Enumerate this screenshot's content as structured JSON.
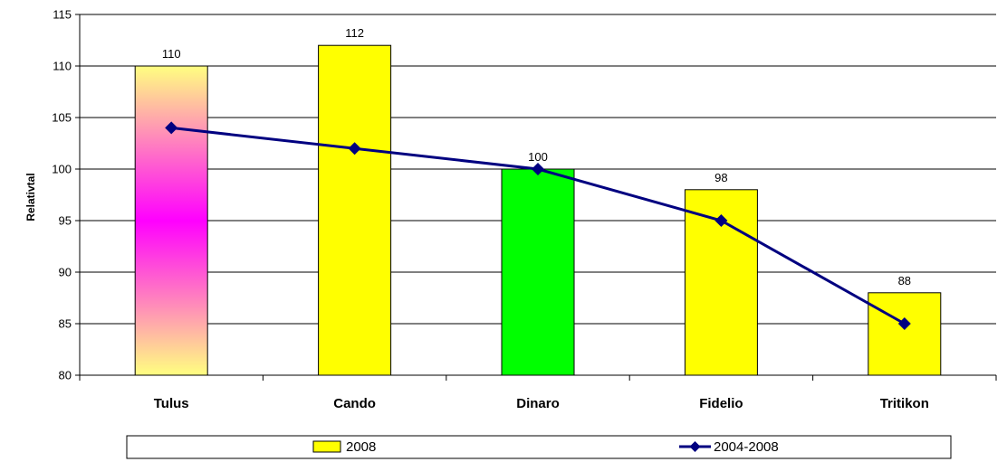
{
  "chart_data": {
    "type": "bar",
    "categories": [
      "Tulus",
      "Cando",
      "Dinaro",
      "Fidelio",
      "Tritikon"
    ],
    "series": [
      {
        "name": "2008",
        "kind": "bar",
        "values": [
          110,
          112,
          100,
          98,
          88
        ],
        "colors": [
          "gradient-pink-magenta",
          "#ffff00",
          "#00ff00",
          "#ffff00",
          "#ffff00"
        ]
      },
      {
        "name": "2004-2008",
        "kind": "line",
        "marker": "diamond",
        "color": "#000080",
        "values": [
          104,
          102,
          100,
          95,
          85
        ]
      }
    ],
    "data_labels": [
      "110",
      "112",
      "100",
      "98",
      "88"
    ],
    "ylabel": "Relativtal",
    "xlabel": "",
    "title": "",
    "ylim": [
      80,
      115
    ],
    "yticks": [
      80,
      85,
      90,
      95,
      100,
      105,
      110,
      115
    ],
    "grid": true,
    "legend_position": "bottom"
  },
  "colors": {
    "bar_default": "#ffff00",
    "bar_highlight": "#00ff00",
    "line": "#000080",
    "gradient_stops": [
      "#ffff80",
      "#ff00ff",
      "#ffff80"
    ]
  }
}
